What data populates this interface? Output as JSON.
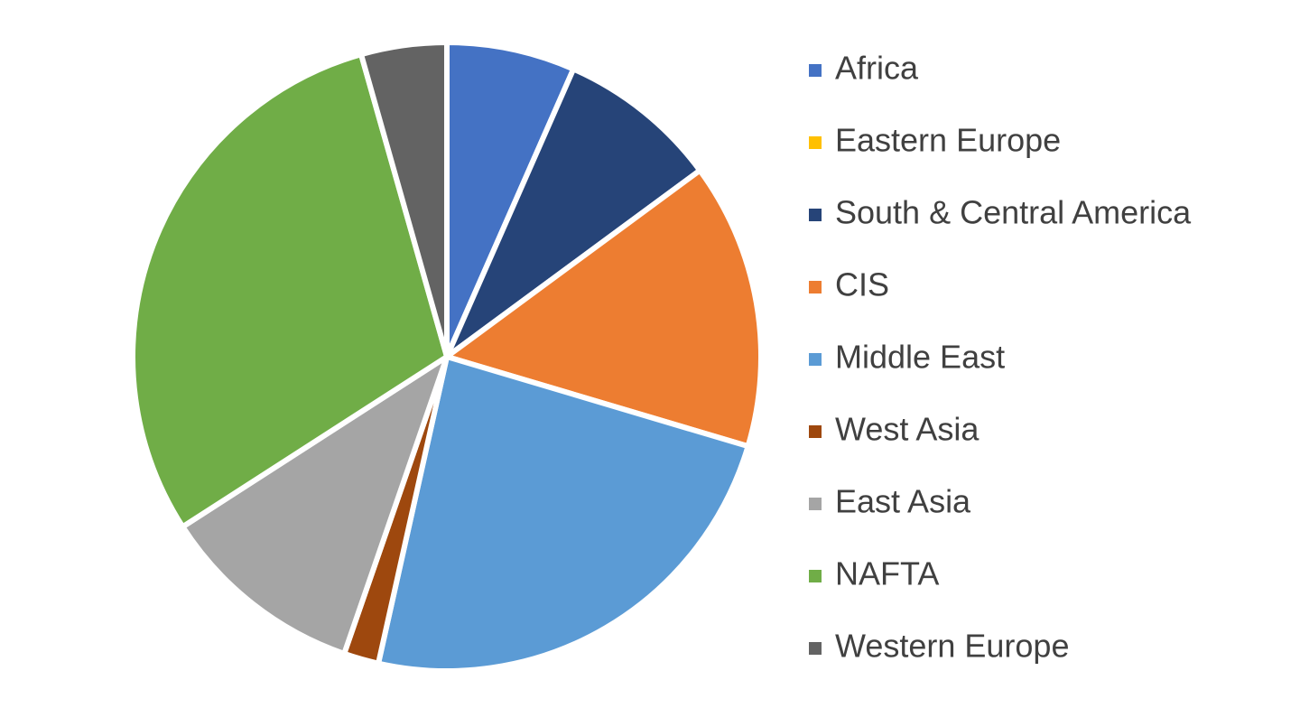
{
  "chart_data": {
    "type": "pie",
    "categories": [
      "Africa",
      "Eastern Europe",
      "South & Central America",
      "CIS",
      "Middle East",
      "West Asia",
      "East Asia",
      "NAFTA",
      "Western Europe"
    ],
    "values": [
      6.6,
      0,
      8.3,
      14.7,
      23.9,
      1.8,
      10.6,
      29.7,
      4.4
    ],
    "colors": [
      "#4472c4",
      "#ffc000",
      "#264478",
      "#ed7d31",
      "#5b9bd5",
      "#9e480e",
      "#a5a5a5",
      "#70ad47",
      "#636363"
    ],
    "legend": "right"
  }
}
